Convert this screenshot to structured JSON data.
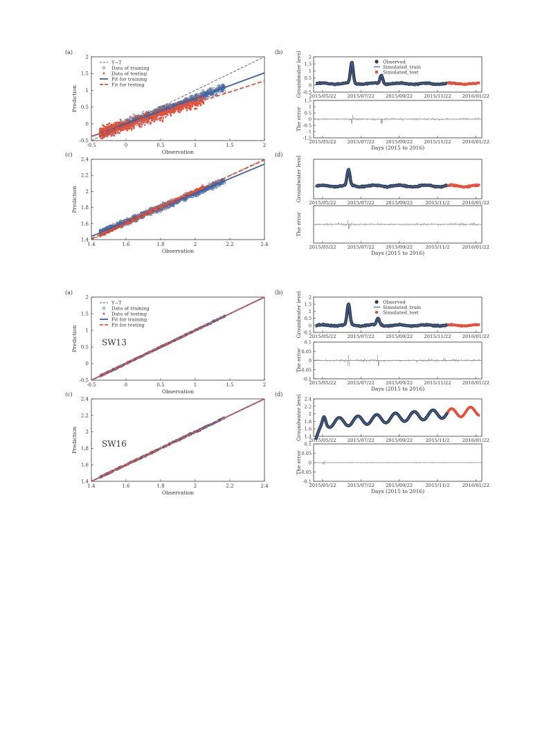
{
  "colors": {
    "train": "#4a6a9e",
    "test": "#e4503a",
    "observed": "#2e3a4e",
    "fit_train": "#3d5f9c",
    "fit_test": "#e4503a",
    "yt": "#555555",
    "error": "#777777"
  },
  "figures": [
    {
      "panels": [
        {
          "letter": "(a)",
          "kind": "scatter",
          "xlabel": "Observation",
          "ylabel": "Prediction",
          "xlim": [
            -0.5,
            2
          ],
          "ylim": [
            -0.5,
            2
          ],
          "xticks": [
            "-0.5",
            "0",
            "0.5",
            "1",
            "1.5",
            "2"
          ],
          "yticks": [
            "-0.5",
            "0",
            "0.5",
            "1",
            "1.5",
            "2"
          ],
          "legend": [
            "Y~T",
            "Data of training",
            "Data of testing",
            "Fit for training",
            "Fit for testing"
          ],
          "fit_train": {
            "slope": 0.76,
            "intercept": 0.0
          },
          "fit_test": {
            "slope": 0.66,
            "intercept": -0.04
          },
          "train_spread": 0.11,
          "test_spread": 0.16,
          "site": ""
        },
        {
          "letter": "(b)",
          "kind": "timeseries",
          "ylabel": "Groundwater level",
          "ylabel2": "The error",
          "yticks": [
            "2",
            "1.5",
            "1",
            "0.5",
            "0",
            "-0.5"
          ],
          "ylim": [
            -0.5,
            2
          ],
          "err_yticks": [
            "1.5",
            "1",
            "0.5",
            "0",
            "-0.5",
            "-1",
            "-1.5"
          ],
          "err_ylim": [
            -1.5,
            1.5
          ],
          "xticks": [
            "2015/05/22",
            "2015/07/22",
            "2015/09/22",
            "2015/11/22",
            "2016/01/22"
          ],
          "xlabel": "Days (2015 to 2016)",
          "legend": [
            "Observed",
            "Simulated_train",
            "Simulated_test"
          ],
          "base": 0.1,
          "peaks": [
            [
              0.22,
              1.5
            ],
            [
              0.4,
              0.6
            ]
          ],
          "err_amp": 0.35
        },
        {
          "letter": "(c)",
          "kind": "scatter",
          "xlabel": "Observation",
          "ylabel": "Prediction",
          "xlim": [
            1.4,
            2.4
          ],
          "ylim": [
            1.4,
            2.4
          ],
          "xticks": [
            "1.4",
            "1.6",
            "1.8",
            "2",
            "2.2",
            "2.4"
          ],
          "yticks": [
            "1.4",
            "1.6",
            "1.8",
            "2",
            "2.2",
            "2.4"
          ],
          "legend": [],
          "fit_train": {
            "slope": 0.9,
            "intercept": 0.18
          },
          "fit_test": {
            "slope": 0.98,
            "intercept": 0.04
          },
          "train_spread": 0.09,
          "test_spread": 0.05,
          "site": ""
        },
        {
          "letter": "(d)",
          "kind": "timeseries",
          "ylabel": "Groundwater level",
          "ylabel2": "The error",
          "yticks": [],
          "ylim": [
            1.0,
            3.0
          ],
          "err_yticks": [],
          "err_ylim": [
            -1,
            1
          ],
          "xticks": [
            "2015/05/22",
            "2015/07/22",
            "2015/09/22",
            "2015/11/2",
            "2016/01/22"
          ],
          "xlabel": "Days (2015 to 2016)",
          "legend": [],
          "base": 1.65,
          "peaks": [
            [
              0.2,
              0.8
            ]
          ],
          "err_amp": 0.25
        }
      ]
    },
    {
      "panels": [
        {
          "letter": "(a)",
          "kind": "scatter",
          "xlabel": "Observation",
          "ylabel": "Prediction",
          "xlim": [
            -0.5,
            2
          ],
          "ylim": [
            -0.5,
            2
          ],
          "xticks": [
            "-0.5",
            "0",
            "0.5",
            "1",
            "1.5",
            "2"
          ],
          "yticks": [
            "-0.5",
            "0",
            "0.5",
            "1",
            "1.5",
            "2"
          ],
          "legend": [
            "Y~T",
            "Data of training",
            "Data of testing",
            "Fit for training",
            "Fit for testing"
          ],
          "fit_train": {
            "slope": 1.0,
            "intercept": 0.0
          },
          "fit_test": {
            "slope": 1.0,
            "intercept": 0.0
          },
          "train_spread": 0.015,
          "test_spread": 0.012,
          "site": "SW13"
        },
        {
          "letter": "(b)",
          "kind": "timeseries",
          "ylabel": "Groundwater level",
          "ylabel2": "The error",
          "yticks": [
            "2",
            "1.5",
            "1",
            "0.5",
            "0",
            "-0.5"
          ],
          "ylim": [
            -0.5,
            2
          ],
          "err_yticks": [
            "0.1",
            "0.05",
            "0",
            "-0.05",
            "-0.1"
          ],
          "err_ylim": [
            -0.1,
            0.1
          ],
          "xticks": [
            "2015/05/22",
            "2015/07/22",
            "2015/09/22",
            "2015/11/22",
            "2016/01/22"
          ],
          "xlabel": "Days (2015 to 2016)",
          "legend": [
            "Observed",
            "Simulated_train",
            "Simulated_test"
          ],
          "base": 0.0,
          "peaks": [
            [
              0.2,
              1.5
            ],
            [
              0.38,
              0.5
            ]
          ],
          "err_amp": 0.03
        },
        {
          "letter": "(c)",
          "kind": "scatter",
          "xlabel": "Observation",
          "ylabel": "Prediction",
          "xlim": [
            1.4,
            2.4
          ],
          "ylim": [
            1.4,
            2.4
          ],
          "xticks": [
            "1.4",
            "1.6",
            "1.8",
            "2",
            "2.2",
            "2.4"
          ],
          "yticks": [
            "1.4",
            "1.6",
            "1.8",
            "2",
            "2.2",
            "2.4"
          ],
          "legend": [],
          "fit_train": {
            "slope": 1.0,
            "intercept": 0.0
          },
          "fit_test": {
            "slope": 1.0,
            "intercept": 0.0
          },
          "train_spread": 0.018,
          "test_spread": 0.01,
          "site": "SW16"
        },
        {
          "letter": "(d)",
          "kind": "timeseries",
          "ylabel": "Groundwater level",
          "ylabel2": "The error",
          "yticks": [
            "2.4",
            "2.2",
            "2",
            "1.8",
            "1.6",
            "1.4"
          ],
          "ylim": [
            1.4,
            2.4
          ],
          "err_yticks": [
            "0.1",
            "0.05",
            "0",
            "-0.05",
            "-0.1"
          ],
          "err_ylim": [
            -0.1,
            0.1
          ],
          "xticks": [
            "2015/05/22",
            "2015/07/22",
            "2015/09/22",
            "2015/11/2",
            "2016/01/22"
          ],
          "xlabel": "Days (2015 to 2016)",
          "legend": [],
          "base": 1.8,
          "peaks": [
            [
              0.05,
              0.2
            ]
          ],
          "err_amp": 0.01,
          "oscillating": true
        }
      ]
    }
  ],
  "chart_data": [
    {
      "type": "scatter",
      "title": "",
      "xlabel": "Observation",
      "ylabel": "Prediction",
      "xlim": [
        -0.5,
        2
      ],
      "ylim": [
        -0.5,
        2
      ],
      "series": [
        {
          "name": "Y~T"
        },
        {
          "name": "Data of training"
        },
        {
          "name": "Data of testing"
        },
        {
          "name": "Fit for training"
        },
        {
          "name": "Fit for testing"
        }
      ]
    },
    {
      "type": "line",
      "title": "",
      "xlabel": "Days (2015 to 2016)",
      "ylabel": "Groundwater level",
      "x": [
        "2015/05/22",
        "2015/07/22",
        "2015/09/22",
        "2015/11/22",
        "2016/01/22"
      ],
      "series": [
        {
          "name": "Observed"
        },
        {
          "name": "Simulated_train"
        },
        {
          "name": "Simulated_test"
        }
      ]
    },
    {
      "type": "scatter",
      "title": "",
      "xlabel": "Observation",
      "ylabel": "Prediction",
      "xlim": [
        1.4,
        2.4
      ],
      "ylim": [
        1.4,
        2.4
      ]
    },
    {
      "type": "line",
      "title": "",
      "xlabel": "Days (2015 to 2016)",
      "ylabel": "Groundwater level"
    },
    {
      "type": "scatter",
      "title": "SW13",
      "xlabel": "Observation",
      "ylabel": "Prediction",
      "xlim": [
        -0.5,
        2
      ],
      "ylim": [
        -0.5,
        2
      ]
    },
    {
      "type": "line",
      "title": "",
      "xlabel": "Days (2015 to 2016)",
      "ylabel": "Groundwater level"
    },
    {
      "type": "scatter",
      "title": "SW16",
      "xlabel": "Observation",
      "ylabel": "Prediction",
      "xlim": [
        1.4,
        2.4
      ],
      "ylim": [
        1.4,
        2.4
      ]
    },
    {
      "type": "line",
      "title": "",
      "xlabel": "Days (2015 to 2016)",
      "ylabel": "Groundwater level",
      "ylim": [
        1.4,
        2.4
      ]
    }
  ]
}
